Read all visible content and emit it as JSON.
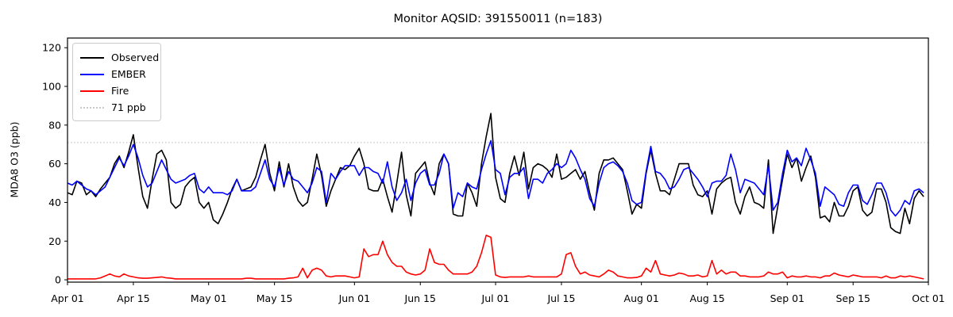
{
  "title": "Monitor AQSID: 391550011 (n=183)",
  "chart_data": {
    "type": "line",
    "title": "Monitor AQSID: 391550011 (n=183)",
    "xlabel": "",
    "ylabel": "MDA8 O3 (ppb)",
    "x_unit": "daily values, day index 0 = Apr 01",
    "n_points": 183,
    "ylim": [
      -1.2,
      125
    ],
    "xlim_days": [
      0,
      183
    ],
    "grid": false,
    "legend_position": "upper left",
    "y_ticks": [
      0,
      20,
      40,
      60,
      80,
      100,
      120
    ],
    "x_ticks": [
      {
        "label": "Apr 01",
        "day": 0
      },
      {
        "label": "Apr 15",
        "day": 14
      },
      {
        "label": "May 01",
        "day": 30
      },
      {
        "label": "May 15",
        "day": 44
      },
      {
        "label": "Jun 01",
        "day": 61
      },
      {
        "label": "Jun 15",
        "day": 75
      },
      {
        "label": "Jul 01",
        "day": 91
      },
      {
        "label": "Jul 15",
        "day": 105
      },
      {
        "label": "Aug 01",
        "day": 122
      },
      {
        "label": "Aug 15",
        "day": 136
      },
      {
        "label": "Sep 01",
        "day": 153
      },
      {
        "label": "Sep 15",
        "day": 167
      },
      {
        "label": "Oct 01",
        "day": 183
      }
    ],
    "threshold": {
      "label": "71 ppb",
      "value": 71,
      "color": "#c9c9c9",
      "style": "dotted"
    },
    "series": [
      {
        "name": "Observed",
        "color": "#000000",
        "values": [
          45,
          44,
          51,
          50,
          44,
          46,
          43,
          47,
          50,
          53,
          60,
          64,
          58,
          66,
          75,
          58,
          43,
          37,
          52,
          65,
          67,
          62,
          40,
          37,
          39,
          48,
          51,
          53,
          40,
          37,
          40,
          31,
          29,
          34,
          40,
          47,
          52,
          46,
          47,
          48,
          53,
          62,
          70,
          55,
          46,
          61,
          48,
          60,
          48,
          41,
          38,
          40,
          52,
          65,
          54,
          38,
          46,
          52,
          58,
          57,
          59,
          64,
          68,
          60,
          47,
          46,
          46,
          52,
          43,
          35,
          50,
          66,
          44,
          33,
          55,
          58,
          61,
          50,
          44,
          60,
          65,
          60,
          34,
          33,
          33,
          50,
          45,
          38,
          60,
          74,
          86,
          53,
          42,
          40,
          55,
          64,
          54,
          66,
          47,
          58,
          60,
          59,
          57,
          53,
          65,
          52,
          53,
          55,
          57,
          52,
          56,
          45,
          36,
          55,
          62,
          62,
          63,
          60,
          57,
          46,
          34,
          39,
          37,
          55,
          67,
          55,
          46,
          46,
          44,
          52,
          60,
          60,
          60,
          49,
          44,
          43,
          46,
          34,
          47,
          50,
          52,
          53,
          40,
          34,
          43,
          48,
          40,
          39,
          37,
          62,
          24,
          38,
          52,
          65,
          58,
          63,
          51,
          58,
          64,
          53,
          32,
          33,
          30,
          40,
          33,
          33,
          38,
          46,
          48,
          36,
          33,
          35,
          47,
          47,
          40,
          27,
          25,
          24,
          37,
          29,
          42,
          46,
          43
        ]
      },
      {
        "name": "EMBER",
        "color": "#0000ff",
        "values": [
          50,
          49,
          51,
          49,
          47,
          46,
          44,
          46,
          48,
          53,
          58,
          63,
          59,
          64,
          70,
          63,
          54,
          48,
          50,
          56,
          62,
          57,
          52,
          50,
          51,
          52,
          54,
          55,
          47,
          45,
          48,
          45,
          45,
          45,
          44,
          46,
          52,
          46,
          46,
          46,
          48,
          55,
          62,
          52,
          48,
          58,
          49,
          56,
          52,
          51,
          48,
          45,
          50,
          58,
          56,
          40,
          55,
          52,
          56,
          59,
          59,
          59,
          54,
          58,
          58,
          56,
          55,
          50,
          61,
          48,
          41,
          45,
          52,
          41,
          50,
          55,
          57,
          49,
          49,
          55,
          65,
          60,
          37,
          45,
          43,
          50,
          48,
          47,
          57,
          65,
          72,
          57,
          55,
          44,
          53,
          55,
          55,
          58,
          42,
          52,
          52,
          50,
          55,
          57,
          60,
          58,
          60,
          67,
          63,
          57,
          52,
          42,
          38,
          50,
          58,
          60,
          61,
          59,
          56,
          50,
          41,
          39,
          40,
          56,
          69,
          56,
          55,
          52,
          47,
          48,
          52,
          57,
          58,
          55,
          52,
          48,
          43,
          50,
          51,
          51,
          54,
          65,
          57,
          45,
          52,
          51,
          50,
          47,
          44,
          59,
          36,
          40,
          55,
          67,
          61,
          63,
          59,
          68,
          62,
          55,
          38,
          48,
          46,
          44,
          39,
          38,
          45,
          49,
          49,
          41,
          39,
          44,
          50,
          50,
          45,
          36,
          33,
          36,
          41,
          39,
          46,
          47,
          45
        ]
      },
      {
        "name": "Fire",
        "color": "#ff0000",
        "values": [
          0.5,
          0.5,
          0.5,
          0.5,
          0.5,
          0.5,
          0.5,
          1,
          2,
          3,
          2,
          1.5,
          3,
          2,
          1.5,
          1,
          0.8,
          0.8,
          1,
          1.2,
          1.5,
          1,
          0.8,
          0.5,
          0.5,
          0.5,
          0.5,
          0.5,
          0.5,
          0.5,
          0.5,
          0.5,
          0.5,
          0.5,
          0.5,
          0.5,
          0.5,
          0.5,
          0.8,
          0.8,
          0.5,
          0.5,
          0.5,
          0.5,
          0.5,
          0.5,
          0.5,
          0.8,
          1,
          1.5,
          6,
          1,
          5,
          6,
          5,
          2,
          1.5,
          2,
          2,
          2,
          1.5,
          1,
          1.5,
          16,
          12,
          13,
          13,
          20,
          13,
          9,
          7,
          7,
          4,
          3,
          2.5,
          3,
          5,
          16,
          9,
          8,
          8,
          5,
          3,
          3,
          3,
          3,
          4,
          7,
          14,
          23,
          22,
          2.5,
          1.5,
          1.2,
          1.5,
          1.5,
          1.5,
          1.5,
          2,
          1.5,
          1.5,
          1.5,
          1.5,
          1.5,
          1.5,
          3,
          13,
          14,
          7,
          3,
          4,
          2.5,
          2,
          1.5,
          3,
          5,
          4,
          2,
          1.5,
          1,
          1,
          1.2,
          2,
          6,
          4,
          10,
          3,
          2.5,
          2,
          2.5,
          3.5,
          3,
          2,
          2,
          2.5,
          1.5,
          2,
          10,
          3,
          5,
          3,
          4,
          4,
          2,
          2,
          1.5,
          1.5,
          1.5,
          2,
          4,
          3,
          3,
          4,
          1,
          2,
          1.5,
          1.5,
          2,
          1.5,
          1.5,
          1,
          2,
          2,
          3.5,
          2.5,
          2,
          1.5,
          2.5,
          2,
          1.5,
          1.5,
          1.5,
          1.5,
          1,
          2,
          1,
          1,
          2,
          1.5,
          2,
          1.5,
          1,
          0.5
        ]
      }
    ]
  }
}
